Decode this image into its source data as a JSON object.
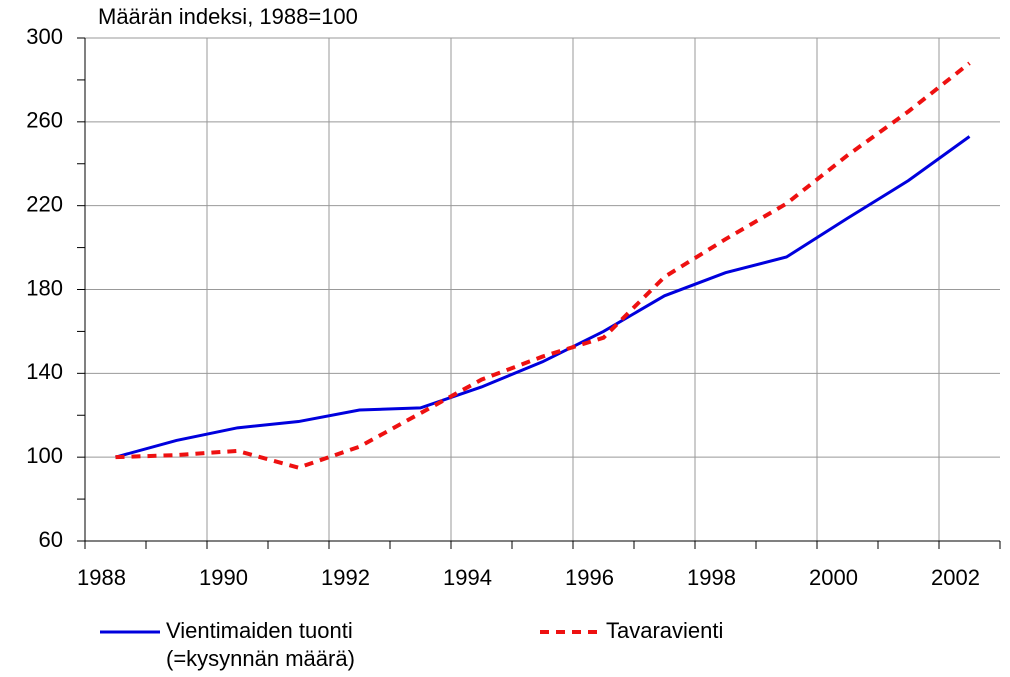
{
  "chart_data": {
    "type": "line",
    "title": "Määrän indeksi, 1988=100",
    "categories": [
      "1988",
      null,
      "1990",
      null,
      "1992",
      null,
      "1994",
      null,
      "1996",
      null,
      "1998",
      null,
      "2000",
      null,
      "2002"
    ],
    "series": [
      {
        "name": "Vientimaiden tuonti\n(=kysynnän määrä)",
        "color": "#0000dd",
        "dash": false,
        "values": [
          100,
          108,
          114,
          117,
          122.5,
          123.5,
          133.5,
          145.5,
          160,
          177,
          188,
          195.5,
          214,
          232,
          253
        ]
      },
      {
        "name": "Tavaravienti",
        "color": "#ee1111",
        "dash": true,
        "values": [
          100,
          101,
          103,
          95,
          105,
          121,
          137,
          148,
          157,
          186,
          204,
          221,
          244,
          265,
          288
        ]
      }
    ],
    "ylim": [
      60,
      300
    ],
    "yticks": [
      60,
      100,
      140,
      180,
      220,
      260,
      300
    ],
    "grid": true
  }
}
